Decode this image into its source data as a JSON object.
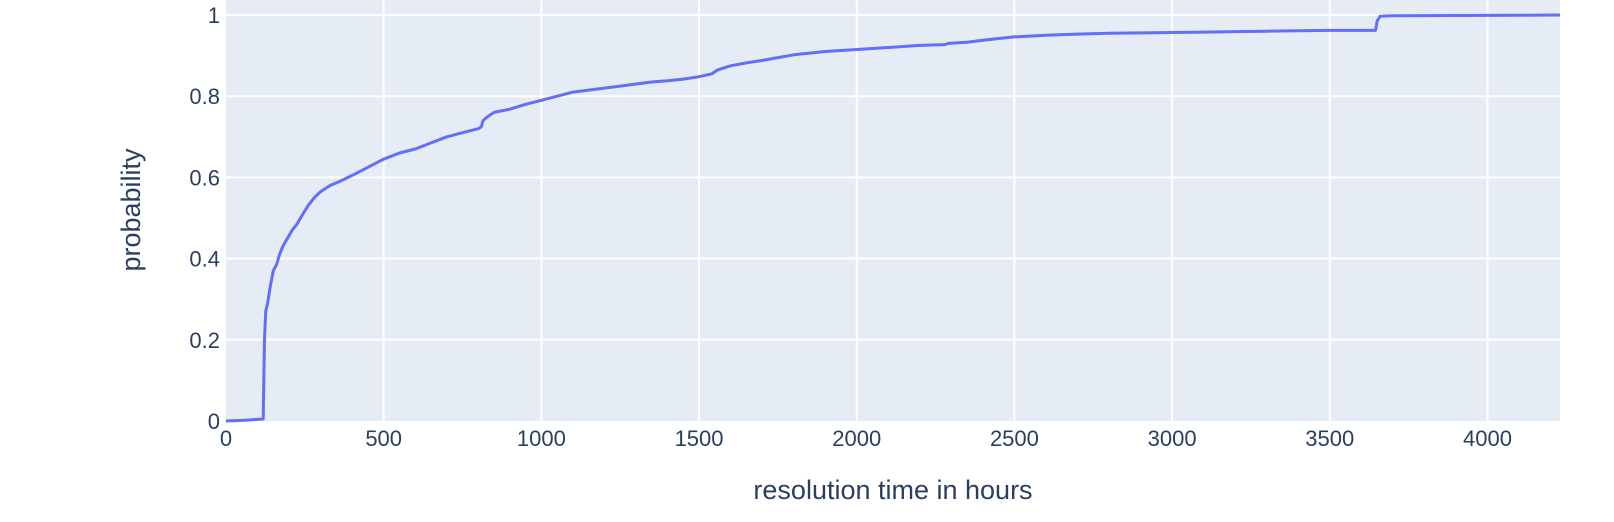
{
  "chart_data": {
    "type": "line",
    "xlabel": "resolution time in hours",
    "ylabel": "probability",
    "xlim": [
      0,
      4230
    ],
    "ylim": [
      0,
      1
    ],
    "x_ticks": [
      0,
      500,
      1000,
      1500,
      2000,
      2500,
      3000,
      3500,
      4000
    ],
    "y_ticks": [
      0,
      0.2,
      0.4,
      0.6,
      0.8,
      1
    ],
    "x_tick_labels": [
      "0",
      "500",
      "1000",
      "1500",
      "2000",
      "2500",
      "3000",
      "3500",
      "4000"
    ],
    "y_tick_labels": [
      "0",
      "0.2",
      "0.4",
      "0.6",
      "0.8",
      "1"
    ],
    "grid": true,
    "colors": {
      "plot_bg": "#e5ecf6",
      "grid": "#ffffff",
      "line": "#636efa",
      "text": "#2a3f5f"
    },
    "series": [
      {
        "x": [
          0,
          60,
          118,
          120,
          122,
          126,
          132,
          140,
          150,
          160,
          170,
          180,
          195,
          210,
          225,
          240,
          260,
          280,
          300,
          330,
          360,
          400,
          450,
          500,
          550,
          600,
          650,
          700,
          750,
          800,
          810,
          815,
          830,
          850,
          900,
          950,
          1000,
          1050,
          1100,
          1150,
          1200,
          1250,
          1300,
          1350,
          1400,
          1450,
          1500,
          1540,
          1560,
          1600,
          1650,
          1700,
          1750,
          1800,
          1900,
          2000,
          2100,
          2200,
          2280,
          2290,
          2350,
          2400,
          2450,
          2500,
          2600,
          2700,
          2800,
          2900,
          3000,
          3100,
          3200,
          3300,
          3400,
          3500,
          3600,
          3645,
          3650,
          3660,
          3700,
          4000,
          4230
        ],
        "y": [
          0,
          0.002,
          0.005,
          0.1,
          0.2,
          0.27,
          0.29,
          0.33,
          0.37,
          0.385,
          0.41,
          0.43,
          0.45,
          0.47,
          0.485,
          0.505,
          0.53,
          0.55,
          0.565,
          0.58,
          0.59,
          0.605,
          0.625,
          0.645,
          0.66,
          0.67,
          0.685,
          0.7,
          0.71,
          0.72,
          0.725,
          0.74,
          0.75,
          0.76,
          0.768,
          0.78,
          0.79,
          0.8,
          0.81,
          0.815,
          0.82,
          0.825,
          0.83,
          0.835,
          0.838,
          0.842,
          0.848,
          0.855,
          0.865,
          0.875,
          0.882,
          0.888,
          0.895,
          0.902,
          0.91,
          0.915,
          0.92,
          0.925,
          0.927,
          0.93,
          0.933,
          0.938,
          0.942,
          0.946,
          0.95,
          0.953,
          0.955,
          0.956,
          0.957,
          0.958,
          0.959,
          0.96,
          0.961,
          0.962,
          0.962,
          0.962,
          0.985,
          0.997,
          0.998,
          0.999,
          1.0
        ]
      }
    ]
  }
}
